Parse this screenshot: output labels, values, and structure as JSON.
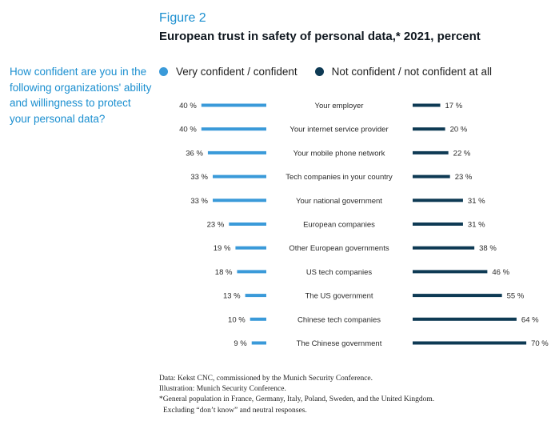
{
  "figure_label": "Figure 2",
  "title": "European trust in safety of personal data,* 2021, percent",
  "question": "How confident are you in the following organizations' ability and willingness to protect your personal data?",
  "colors": {
    "accent": "#1b8fd0",
    "confident": "#3a9ad9",
    "not_confident": "#0e3a54"
  },
  "footer": {
    "line1": "Data: Kekst CNC, commissioned by the Munich Security Conference.",
    "line2": "Illustration: Munich Security Conference.",
    "line3": "*General population in France, Germany, Italy, Poland, Sweden, and the United Kingdom.",
    "line4": "Excluding “don’t know” and neutral responses."
  },
  "chart_data": {
    "type": "bar",
    "categories": [
      "Your employer",
      "Your internet service provider",
      "Your mobile phone network",
      "Tech companies in your country",
      "Your national government",
      "European companies",
      "Other European governments",
      "US tech companies",
      "The US government",
      "Chinese tech companies",
      "The Chinese government"
    ],
    "series": [
      {
        "name": "Very confident / confident",
        "values": [
          40,
          40,
          36,
          33,
          33,
          23,
          19,
          18,
          13,
          10,
          9
        ]
      },
      {
        "name": "Not confident / not confident at all",
        "values": [
          17,
          20,
          22,
          23,
          31,
          31,
          38,
          46,
          55,
          64,
          70
        ]
      }
    ],
    "value_suffix": " %"
  }
}
